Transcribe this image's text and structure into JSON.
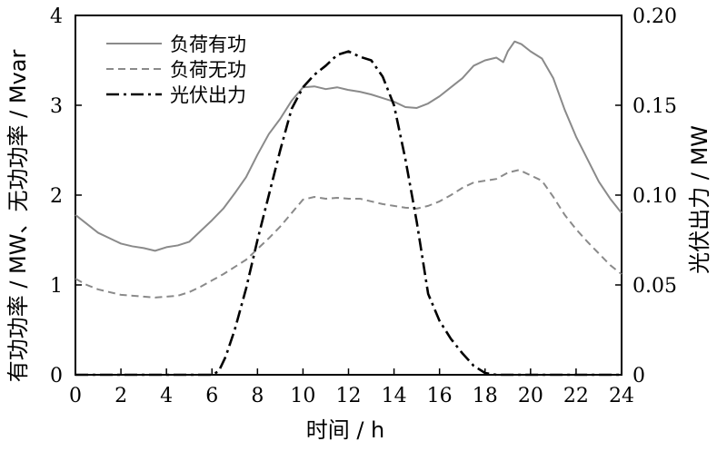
{
  "chart_data": {
    "type": "line",
    "xlabel": "时间 / h",
    "ylabel_left": "有功功率 / MW、无功功率 / Mvar",
    "ylabel_right": "光伏出力 / MW",
    "xlim": [
      0,
      24
    ],
    "ylim_left": [
      0,
      4
    ],
    "ylim_right": [
      0,
      0.2
    ],
    "x_ticks": [
      "0",
      "2",
      "4",
      "6",
      "8",
      "10",
      "12",
      "14",
      "16",
      "18",
      "20",
      "22",
      "24"
    ],
    "y_ticks_left": [
      "0",
      "1",
      "2",
      "3",
      "4"
    ],
    "y_ticks_right": [
      "0",
      "0.05",
      "0.10",
      "0.15",
      "0.20"
    ],
    "grid": false,
    "legend_position": "top-left",
    "series": [
      {
        "name": "负荷有功",
        "axis": "left",
        "style": "solid",
        "color": "#8a8a8a",
        "points": [
          [
            0,
            1.78
          ],
          [
            0.5,
            1.68
          ],
          [
            1,
            1.58
          ],
          [
            1.5,
            1.52
          ],
          [
            2,
            1.46
          ],
          [
            2.5,
            1.43
          ],
          [
            3,
            1.41
          ],
          [
            3.5,
            1.38
          ],
          [
            4,
            1.42
          ],
          [
            4.5,
            1.44
          ],
          [
            5,
            1.48
          ],
          [
            5.5,
            1.6
          ],
          [
            6,
            1.72
          ],
          [
            6.5,
            1.85
          ],
          [
            7,
            2.02
          ],
          [
            7.5,
            2.2
          ],
          [
            8,
            2.45
          ],
          [
            8.5,
            2.68
          ],
          [
            9,
            2.85
          ],
          [
            9.5,
            3.05
          ],
          [
            10,
            3.2
          ],
          [
            10.5,
            3.21
          ],
          [
            11,
            3.18
          ],
          [
            11.5,
            3.2
          ],
          [
            12,
            3.17
          ],
          [
            12.5,
            3.15
          ],
          [
            13,
            3.12
          ],
          [
            13.5,
            3.08
          ],
          [
            14,
            3.04
          ],
          [
            14.5,
            2.98
          ],
          [
            15,
            2.97
          ],
          [
            15.5,
            3.02
          ],
          [
            16,
            3.1
          ],
          [
            16.5,
            3.2
          ],
          [
            17,
            3.3
          ],
          [
            17.5,
            3.44
          ],
          [
            18,
            3.5
          ],
          [
            18.5,
            3.53
          ],
          [
            18.8,
            3.48
          ],
          [
            19,
            3.6
          ],
          [
            19.3,
            3.71
          ],
          [
            19.6,
            3.68
          ],
          [
            20,
            3.6
          ],
          [
            20.5,
            3.52
          ],
          [
            21,
            3.3
          ],
          [
            21.5,
            2.95
          ],
          [
            22,
            2.65
          ],
          [
            22.5,
            2.4
          ],
          [
            23,
            2.15
          ],
          [
            23.5,
            1.96
          ],
          [
            24,
            1.8
          ]
        ]
      },
      {
        "name": "负荷无功",
        "axis": "left",
        "style": "dashed",
        "color": "#8a8a8a",
        "points": [
          [
            0,
            1.07
          ],
          [
            0.5,
            1.0
          ],
          [
            1,
            0.95
          ],
          [
            1.5,
            0.92
          ],
          [
            2,
            0.89
          ],
          [
            2.5,
            0.88
          ],
          [
            3,
            0.87
          ],
          [
            3.5,
            0.86
          ],
          [
            4,
            0.87
          ],
          [
            4.5,
            0.88
          ],
          [
            5,
            0.92
          ],
          [
            5.5,
            0.98
          ],
          [
            6,
            1.05
          ],
          [
            6.5,
            1.12
          ],
          [
            7,
            1.2
          ],
          [
            7.5,
            1.28
          ],
          [
            8,
            1.4
          ],
          [
            8.5,
            1.52
          ],
          [
            9,
            1.65
          ],
          [
            9.5,
            1.8
          ],
          [
            10,
            1.95
          ],
          [
            10.5,
            1.98
          ],
          [
            11,
            1.96
          ],
          [
            11.5,
            1.97
          ],
          [
            12,
            1.96
          ],
          [
            12.5,
            1.96
          ],
          [
            13,
            1.93
          ],
          [
            13.5,
            1.9
          ],
          [
            14,
            1.88
          ],
          [
            14.5,
            1.86
          ],
          [
            15,
            1.85
          ],
          [
            15.5,
            1.88
          ],
          [
            16,
            1.93
          ],
          [
            16.5,
            2.0
          ],
          [
            17,
            2.08
          ],
          [
            17.5,
            2.14
          ],
          [
            18,
            2.16
          ],
          [
            18.5,
            2.18
          ],
          [
            19,
            2.25
          ],
          [
            19.5,
            2.28
          ],
          [
            20,
            2.22
          ],
          [
            20.5,
            2.16
          ],
          [
            21,
            1.98
          ],
          [
            21.5,
            1.78
          ],
          [
            22,
            1.62
          ],
          [
            22.5,
            1.48
          ],
          [
            23,
            1.35
          ],
          [
            23.5,
            1.22
          ],
          [
            24,
            1.12
          ]
        ]
      },
      {
        "name": "光伏出力",
        "axis": "right",
        "style": "dashdot",
        "color": "#000000",
        "points": [
          [
            0,
            0
          ],
          [
            5.5,
            0
          ],
          [
            6,
            0
          ],
          [
            6.3,
            0.002
          ],
          [
            6.6,
            0.01
          ],
          [
            7,
            0.025
          ],
          [
            7.5,
            0.048
          ],
          [
            8,
            0.075
          ],
          [
            8.5,
            0.1
          ],
          [
            9,
            0.125
          ],
          [
            9.5,
            0.148
          ],
          [
            10,
            0.16
          ],
          [
            10.5,
            0.167
          ],
          [
            11,
            0.172
          ],
          [
            11.5,
            0.178
          ],
          [
            12,
            0.18
          ],
          [
            12.5,
            0.177
          ],
          [
            13,
            0.175
          ],
          [
            13.5,
            0.166
          ],
          [
            14,
            0.15
          ],
          [
            14.5,
            0.12
          ],
          [
            15,
            0.085
          ],
          [
            15.5,
            0.045
          ],
          [
            16,
            0.03
          ],
          [
            16.5,
            0.02
          ],
          [
            17,
            0.012
          ],
          [
            17.5,
            0.005
          ],
          [
            18,
            0.001
          ],
          [
            18.5,
            0
          ],
          [
            24,
            0
          ]
        ]
      }
    ]
  }
}
